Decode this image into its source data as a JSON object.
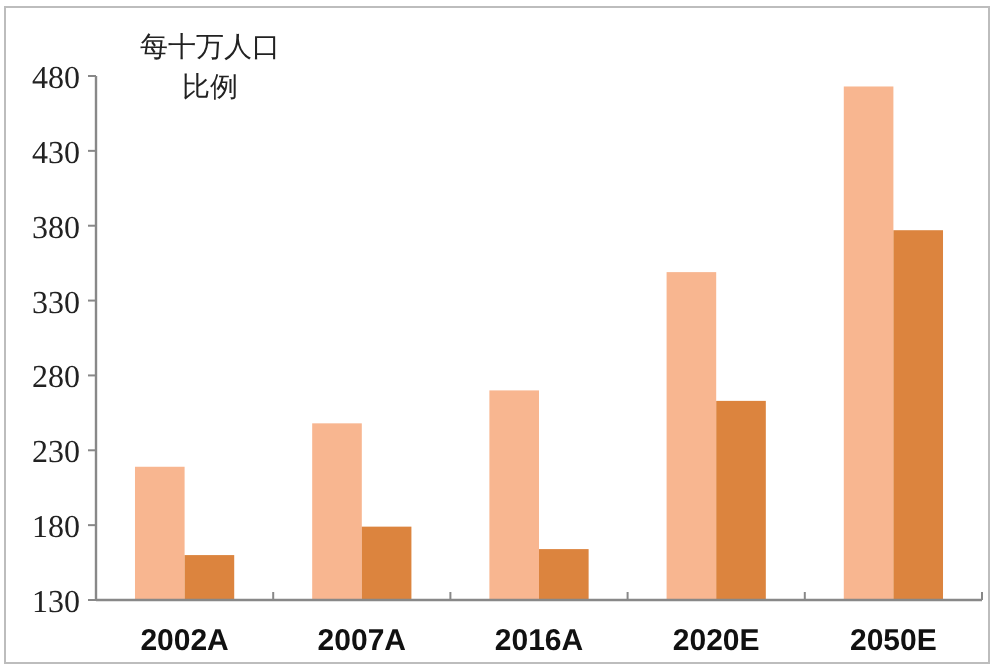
{
  "chart_data": {
    "type": "bar",
    "ylabel": "每十万人口比例",
    "categories": [
      "2002A",
      "2007A",
      "2016A",
      "2020E",
      "2050E"
    ],
    "series": [
      {
        "color": "#f8b690",
        "values": [
          219,
          248,
          270,
          349,
          473
        ]
      },
      {
        "color": "#dc843e",
        "values": [
          160,
          179,
          164,
          263,
          377
        ]
      }
    ],
    "ylim": [
      130,
      480
    ],
    "yticks": [
      130,
      180,
      230,
      280,
      330,
      380,
      430,
      480
    ],
    "grid": false
  }
}
